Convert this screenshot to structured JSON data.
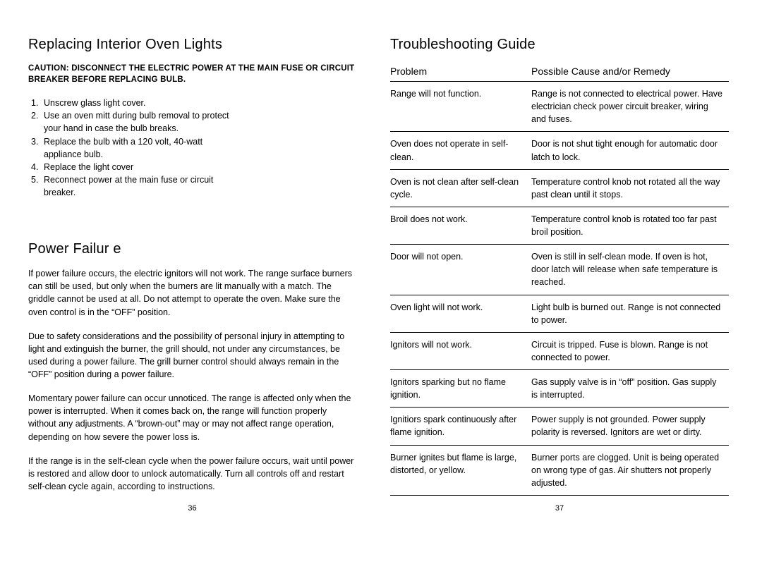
{
  "left": {
    "heading1": "Replacing Interior Oven Lights",
    "caution": "CAUTION:  DISCONNECT THE ELECTRIC POWER AT THE MAIN FUSE OR CIRCUIT BREAKER BEFORE REPLACING BULB.",
    "steps": [
      "Unscrew glass light cover.",
      "Use an oven mitt during bulb removal to protect your hand in case the bulb breaks.",
      "Replace the bulb with a 120 volt, 40-watt appliance bulb.",
      "Replace the light cover",
      "Reconnect power at the main fuse or circuit breaker."
    ],
    "heading2": "Power Failur e",
    "p1": "If power failure occurs, the electric ignitors will not work.  The range surface burners can still be used, but only when the burners are lit manually with a match.  The griddle cannot be used at all.  Do not attempt to operate the oven.  Make sure the oven control is in the “OFF” position.",
    "p2_strong": "Due to safety considerations",
    "p2_rest": "    and the possibility of personal injury in attempting to light and extinguish the burner, the grill should, not under any circumstances, be used during a power failure.  The grill burner control should always remain in the “OFF” position during a power failure.",
    "p3": "Momentary power failure can occur unnoticed.  The range is affected only when the power is interrupted.  When it comes back on, the range will function properly without any adjustments.  A “brown-out” may or may not affect range operation, depending on how severe the power loss is.",
    "p4": "If the range is in the self-clean cycle when the power failure occurs, wait until power is restored and allow door to unlock automatically.  Turn all controls off and restart self-clean cycle again, according to instructions.",
    "page_num": "36"
  },
  "right": {
    "heading": "Troubleshooting Guide",
    "col1": "Problem",
    "col2": "Possible Cause and/or Remedy",
    "rows": [
      {
        "problem": "Range will not function.",
        "remedy": "Range is not connected to electrical power.  Have electrician check power circuit breaker, wiring and fuses."
      },
      {
        "problem": "Oven does not operate in self-clean.",
        "remedy": "Door is not shut tight enough for automatic door latch to lock."
      },
      {
        "problem": "Oven is not clean after self-clean cycle.",
        "remedy": "Temperature control knob not rotated all the way past clean until it stops."
      },
      {
        "problem": "Broil does not work.",
        "remedy": "Temperature control knob is rotated too far past broil position."
      },
      {
        "problem": "Door will not open.",
        "remedy": "Oven is still in self-clean mode.  If oven is hot, door latch will release when safe temperature is reached."
      },
      {
        "problem": "Oven light will not work.",
        "remedy": "Light bulb is burned out.  Range is not connected to power."
      },
      {
        "problem": "Ignitors will not work.",
        "remedy": "Circuit is tripped.  Fuse is blown.  Range is not connected to power."
      },
      {
        "problem": "Ignitors sparking but no flame ignition.",
        "remedy": "Gas supply valve is in “off” position.  Gas supply is interrupted."
      },
      {
        "problem": "Ignitiors spark continuously after flame ignition.",
        "remedy": "Power supply is not grounded.  Power supply polarity is reversed.  Ignitors are wet or dirty."
      },
      {
        "problem": "Burner ignites but flame is large, distorted, or yellow.",
        "remedy": "Burner ports are clogged.  Unit is being operated on wrong type of gas.  Air shutters not properly adjusted."
      }
    ],
    "page_num": "37"
  }
}
